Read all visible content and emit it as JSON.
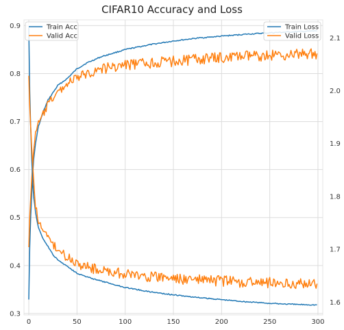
{
  "chart_data": {
    "type": "line",
    "title": "CIFAR10 Accuracy and Loss",
    "xlabel": "",
    "ylabel": "",
    "xlim": [
      -5,
      305
    ],
    "ylim": [
      0.297,
      0.912
    ],
    "y2lim": [
      1.576,
      2.134
    ],
    "grid": true,
    "x_ticks": [
      "0",
      "50",
      "100",
      "150",
      "200",
      "250",
      "300"
    ],
    "y_ticks": [
      "0.3",
      "0.4",
      "0.5",
      "0.6",
      "0.7",
      "0.8",
      "0.9"
    ],
    "y2_ticks": [
      "1.6",
      "1.7",
      "1.8",
      "1.9",
      "2.0",
      "2.1"
    ],
    "legend_left": {
      "placement": "top-left",
      "entries": [
        {
          "label": "Train Acc",
          "color": "#1f77b4"
        },
        {
          "label": "Valid Acc",
          "color": "#ff7f0e"
        }
      ]
    },
    "legend_right": {
      "placement": "top-right",
      "entries": [
        {
          "label": "Train Loss",
          "color": "#1f77b4"
        },
        {
          "label": "Valid Loss",
          "color": "#ff7f0e"
        }
      ]
    },
    "series": [
      {
        "name": "Train Acc",
        "axis": "left",
        "color": "#1f77b4",
        "x": [
          0,
          1,
          2,
          3,
          4,
          5,
          7,
          10,
          15,
          20,
          25,
          30,
          40,
          50,
          60,
          75,
          100,
          125,
          150,
          175,
          200,
          225,
          250,
          275,
          299
        ],
        "y": [
          0.33,
          0.44,
          0.5,
          0.55,
          0.59,
          0.62,
          0.655,
          0.69,
          0.72,
          0.745,
          0.76,
          0.775,
          0.79,
          0.81,
          0.822,
          0.835,
          0.85,
          0.86,
          0.868,
          0.874,
          0.878,
          0.882,
          0.885,
          0.887,
          0.889
        ]
      },
      {
        "name": "Valid Acc",
        "axis": "left",
        "color": "#ff7f0e",
        "x": [
          0,
          1,
          3,
          5,
          7,
          10,
          15,
          20,
          25,
          30,
          40,
          50,
          60,
          75,
          100,
          125,
          150,
          175,
          200,
          225,
          250,
          275,
          299
        ],
        "y": [
          0.44,
          0.5,
          0.58,
          0.64,
          0.68,
          0.695,
          0.715,
          0.735,
          0.75,
          0.76,
          0.78,
          0.79,
          0.8,
          0.81,
          0.818,
          0.822,
          0.826,
          0.83,
          0.833,
          0.836,
          0.838,
          0.84,
          0.842
        ]
      },
      {
        "name": "Train Loss",
        "axis": "right",
        "color": "#1f77b4",
        "x": [
          0,
          1,
          2,
          3,
          4,
          5,
          7,
          10,
          15,
          20,
          25,
          30,
          40,
          50,
          60,
          75,
          100,
          125,
          150,
          175,
          200,
          225,
          250,
          275,
          299
        ],
        "y": [
          2.12,
          2.0,
          1.93,
          1.87,
          1.83,
          1.8,
          1.77,
          1.74,
          1.72,
          1.705,
          1.69,
          1.68,
          1.668,
          1.655,
          1.648,
          1.64,
          1.628,
          1.62,
          1.614,
          1.609,
          1.605,
          1.601,
          1.598,
          1.596,
          1.595
        ]
      },
      {
        "name": "Valid Loss",
        "axis": "right",
        "color": "#ff7f0e",
        "x": [
          0,
          1,
          3,
          5,
          7,
          10,
          15,
          20,
          25,
          30,
          40,
          50,
          60,
          75,
          100,
          125,
          150,
          175,
          200,
          225,
          250,
          275,
          299
        ],
        "y": [
          2.03,
          1.97,
          1.89,
          1.83,
          1.78,
          1.755,
          1.735,
          1.72,
          1.71,
          1.7,
          1.685,
          1.675,
          1.667,
          1.66,
          1.653,
          1.648,
          1.645,
          1.642,
          1.64,
          1.638,
          1.637,
          1.636,
          1.635
        ]
      }
    ]
  }
}
